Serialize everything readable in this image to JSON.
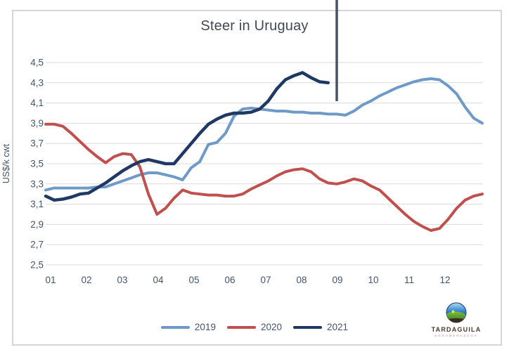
{
  "title": "Steer in Uruguay",
  "y_axis": {
    "label": "US$/k cwt",
    "ticks": [
      "4,5",
      "4,3",
      "4,1",
      "3,9",
      "3,7",
      "3,5",
      "3,3",
      "3,1",
      "2,9",
      "2,7",
      "2,5"
    ]
  },
  "x_axis": {
    "ticks": [
      "01",
      "02",
      "03",
      "04",
      "05",
      "06",
      "07",
      "08",
      "09",
      "10",
      "11",
      "12"
    ]
  },
  "legend": [
    {
      "label": "2019",
      "color": "#6d9ac8"
    },
    {
      "label": "2020",
      "color": "#c0504d"
    },
    {
      "label": "2021",
      "color": "#1f3864"
    }
  ],
  "logo": {
    "name": "TARDAGUILA",
    "subtext": "AGROMERCADOS"
  },
  "colors": {
    "gridline": "#d9d9d9",
    "axis_text": "#44546a",
    "annotation_line": "#44546a",
    "title_text": "#414954"
  },
  "chart_data": {
    "type": "line",
    "title": "Steer in Uruguay",
    "xlabel": "",
    "ylabel": "US$/k cwt",
    "ylim": [
      2.5,
      4.5
    ],
    "y_tick_step": 0.2,
    "grid": "horizontal",
    "legend_position": "bottom",
    "x_unit": "week (weekly prices, months 01-12 labeled on axis)",
    "categories_months": [
      "01",
      "02",
      "03",
      "04",
      "05",
      "06",
      "07",
      "08",
      "09",
      "10",
      "11",
      "12"
    ],
    "annotation": {
      "type": "vertical-line",
      "at_week": 35,
      "near_month": "09",
      "color": "#44546a"
    },
    "series": [
      {
        "name": "2019",
        "color": "#6d9ac8",
        "values": [
          3.24,
          3.26,
          3.26,
          3.26,
          3.26,
          3.26,
          3.27,
          3.27,
          3.3,
          3.33,
          3.36,
          3.39,
          3.41,
          3.41,
          3.39,
          3.37,
          3.34,
          3.46,
          3.52,
          3.69,
          3.71,
          3.8,
          3.97,
          4.04,
          4.05,
          4.04,
          4.03,
          4.02,
          4.02,
          4.01,
          4.01,
          4.0,
          4.0,
          3.99,
          3.99,
          3.98,
          4.02,
          4.08,
          4.12,
          4.17,
          4.21,
          4.25,
          4.28,
          4.31,
          4.33,
          4.34,
          4.33,
          4.27,
          4.19,
          4.06,
          3.95,
          3.9
        ]
      },
      {
        "name": "2020",
        "color": "#c0504d",
        "values": [
          3.89,
          3.89,
          3.87,
          3.8,
          3.72,
          3.64,
          3.57,
          3.51,
          3.57,
          3.6,
          3.59,
          3.47,
          3.2,
          3.0,
          3.06,
          3.16,
          3.24,
          3.21,
          3.2,
          3.19,
          3.19,
          3.18,
          3.18,
          3.2,
          3.25,
          3.29,
          3.33,
          3.38,
          3.42,
          3.44,
          3.45,
          3.42,
          3.35,
          3.31,
          3.3,
          3.32,
          3.35,
          3.33,
          3.28,
          3.24,
          3.16,
          3.08,
          3.0,
          2.93,
          2.88,
          2.84,
          2.86,
          2.95,
          3.06,
          3.14,
          3.18,
          3.2
        ]
      },
      {
        "name": "2021",
        "color": "#1f3864",
        "values": [
          3.18,
          3.14,
          3.15,
          3.17,
          3.2,
          3.21,
          3.26,
          3.31,
          3.37,
          3.43,
          3.48,
          3.52,
          3.54,
          3.52,
          3.5,
          3.5,
          3.6,
          3.7,
          3.8,
          3.89,
          3.94,
          3.98,
          4.0,
          4.0,
          4.01,
          4.04,
          4.12,
          4.24,
          4.33,
          4.37,
          4.4,
          4.35,
          4.31,
          4.3,
          null,
          null,
          null,
          null,
          null,
          null,
          null,
          null,
          null,
          null,
          null,
          null,
          null,
          null,
          null,
          null,
          null,
          null
        ]
      }
    ]
  }
}
